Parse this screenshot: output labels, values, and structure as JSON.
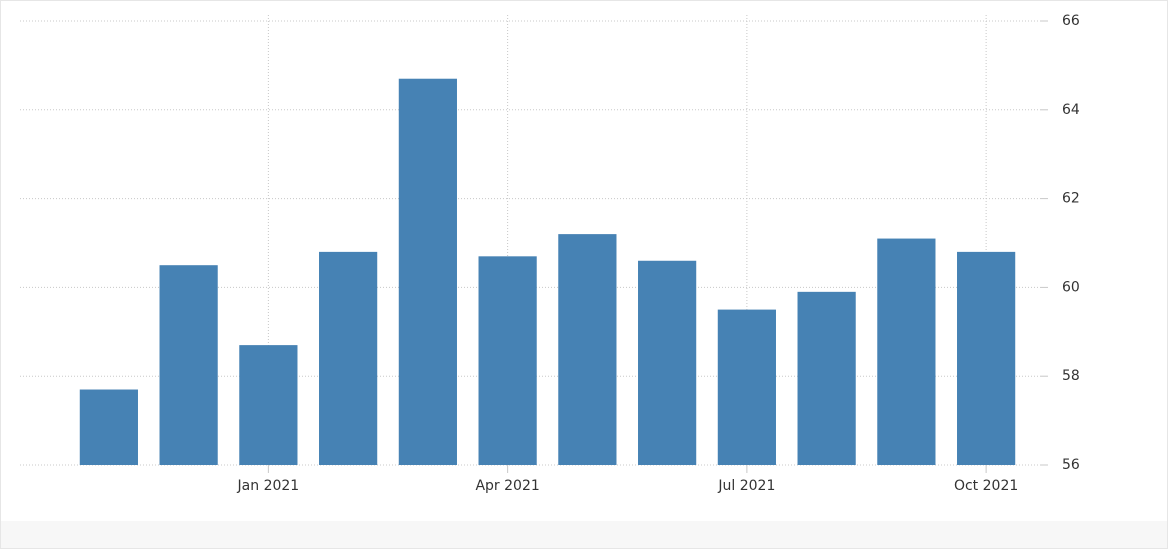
{
  "chart_data": {
    "type": "bar",
    "categories": [
      null,
      null,
      "Jan 2021",
      null,
      null,
      "Apr 2021",
      null,
      null,
      "Jul 2021",
      null,
      null,
      "Oct 2021"
    ],
    "values": [
      57.7,
      60.5,
      58.7,
      60.8,
      64.7,
      60.7,
      61.2,
      60.6,
      59.5,
      59.9,
      61.1,
      60.8
    ],
    "color": "#4682b4",
    "ylim": [
      56,
      66
    ],
    "yticks": [
      56,
      58,
      60,
      62,
      64,
      66
    ],
    "grid": true
  }
}
